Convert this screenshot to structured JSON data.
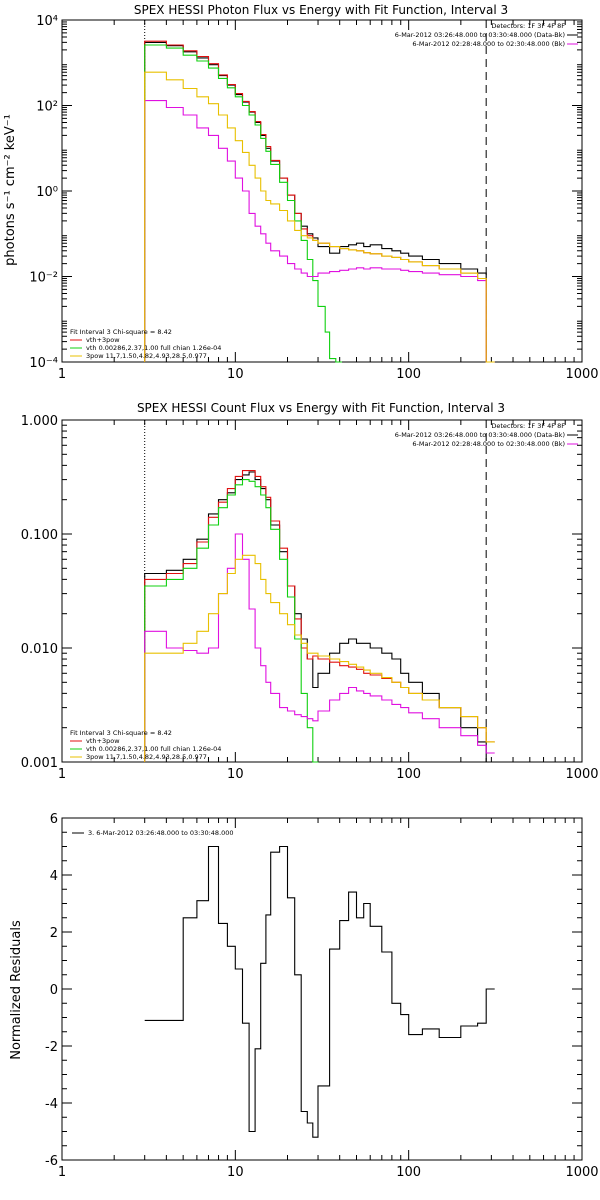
{
  "colors": {
    "black": "#000000",
    "red": "#e01010",
    "green": "#10d010",
    "magenta": "#e010e0",
    "yellow": "#e8c000"
  },
  "chart_data": [
    {
      "type": "line",
      "step": true,
      "title": "SPEX HESSI Photon Flux vs Energy with Fit Function, Interval 3",
      "ylabel": "photons s⁻¹ cm⁻² keV⁻¹",
      "xlabel": "",
      "xscale": "log",
      "yscale": "log",
      "xlim": [
        1,
        1000
      ],
      "ylim": [
        0.0001,
        10000
      ],
      "x_ticks": [
        1,
        10,
        100,
        1000
      ],
      "x_tick_labels": [
        "1",
        "10",
        "100",
        "1000"
      ],
      "y_ticks": [
        0.0001,
        0.01,
        1,
        100,
        10000
      ],
      "y_tick_labels": [
        "10⁻⁴",
        "10⁻²",
        "10⁰",
        "10²",
        "10⁴"
      ],
      "vlines": [
        {
          "x": 3,
          "style": "dotted"
        },
        {
          "x": 280,
          "style": "dashed"
        }
      ],
      "legend_tr": [
        "Detectors: 1F 3F 4F 8F",
        "6-Mar-2012 03:26:48.000 to 03:30:48.000 (Data-Bk)",
        "6-Mar-2012 02:28:48.000 to 02:30:48.000 (Bk)"
      ],
      "legend_bl": [
        "Fit Interval 3   Chi-square = 8.42",
        "vth+3pow",
        "vth 0.00286,2.37,1.00  full chian 1.26e-04",
        "3pow 11.7,1.50,4.82,4.93,28.5,0.977"
      ],
      "series": [
        {
          "color": "black",
          "x": [
            3,
            4,
            5,
            6,
            7,
            8,
            9,
            10,
            11,
            12,
            13,
            14,
            15,
            16,
            18,
            20,
            22,
            24,
            26,
            28,
            30,
            35,
            40,
            45,
            50,
            55,
            60,
            70,
            80,
            90,
            100,
            120,
            150,
            200,
            250,
            280
          ],
          "y": [
            3000,
            2500,
            1800,
            1300,
            900,
            500,
            300,
            180,
            120,
            70,
            40,
            20,
            10,
            5,
            2,
            0.8,
            0.3,
            0.15,
            0.1,
            0.08,
            0.05,
            0.035,
            0.05,
            0.055,
            0.06,
            0.05,
            0.055,
            0.045,
            0.04,
            0.035,
            0.03,
            0.025,
            0.02,
            0.015,
            0.012,
            0.0001
          ]
        },
        {
          "color": "red",
          "x": [
            3,
            4,
            5,
            6,
            7,
            8,
            9,
            10,
            11,
            12,
            13,
            14,
            15,
            16,
            18,
            20,
            22,
            24,
            26,
            28,
            30,
            35,
            40,
            45,
            50,
            55,
            60,
            70,
            80,
            90,
            100,
            120,
            150,
            200,
            250,
            280
          ],
          "y": [
            3200,
            2600,
            1900,
            1400,
            950,
            520,
            310,
            190,
            125,
            72,
            42,
            21,
            11,
            5.2,
            2,
            0.8,
            0.3,
            0.13,
            0.09,
            0.07,
            0.06,
            0.05,
            0.045,
            0.042,
            0.04,
            0.036,
            0.034,
            0.03,
            0.028,
            0.025,
            0.022,
            0.018,
            0.015,
            0.012,
            0.009,
            0.0001
          ]
        },
        {
          "color": "green",
          "x": [
            3,
            4,
            5,
            6,
            7,
            8,
            9,
            10,
            11,
            12,
            13,
            14,
            15,
            16,
            18,
            20,
            22,
            24,
            26,
            28,
            30,
            33,
            35,
            38
          ],
          "y": [
            2600,
            2200,
            1500,
            1100,
            750,
            430,
            260,
            160,
            100,
            60,
            35,
            17,
            8.5,
            4.2,
            1.6,
            0.6,
            0.2,
            0.07,
            0.025,
            0.008,
            0.002,
            0.0005,
            0.00012,
            0.0001
          ]
        },
        {
          "color": "magenta",
          "x": [
            3,
            4,
            5,
            6,
            7,
            8,
            9,
            10,
            11,
            12,
            13,
            14,
            15,
            16,
            18,
            20,
            22,
            24,
            26,
            28,
            30,
            35,
            40,
            45,
            50,
            55,
            60,
            70,
            80,
            90,
            100,
            120,
            150,
            200,
            250,
            280
          ],
          "y": [
            130,
            90,
            60,
            30,
            20,
            10,
            5,
            2,
            1,
            0.3,
            0.15,
            0.1,
            0.06,
            0.04,
            0.03,
            0.02,
            0.015,
            0.012,
            0.01,
            0.01,
            0.012,
            0.013,
            0.014,
            0.015,
            0.016,
            0.015,
            0.016,
            0.015,
            0.015,
            0.014,
            0.013,
            0.012,
            0.011,
            0.01,
            0.008,
            0.0001
          ]
        },
        {
          "color": "yellow",
          "x": [
            3,
            4,
            5,
            6,
            7,
            8,
            9,
            10,
            11,
            12,
            13,
            14,
            15,
            16,
            18,
            20,
            22,
            24,
            26,
            28,
            30,
            35,
            40,
            45,
            50,
            55,
            60,
            70,
            80,
            90,
            100,
            120,
            150,
            200,
            250,
            280
          ],
          "y": [
            600,
            400,
            250,
            160,
            110,
            60,
            30,
            15,
            8,
            4,
            2,
            1,
            0.6,
            0.5,
            0.35,
            0.2,
            0.12,
            0.09,
            0.08,
            0.07,
            0.06,
            0.05,
            0.045,
            0.042,
            0.04,
            0.036,
            0.034,
            0.03,
            0.028,
            0.025,
            0.022,
            0.018,
            0.015,
            0.012,
            0.009,
            0.0001
          ]
        }
      ]
    },
    {
      "type": "line",
      "step": true,
      "title": "SPEX HESSI Count Flux vs Energy with Fit Function, Interval 3",
      "ylabel": "",
      "xlabel": "",
      "xscale": "log",
      "yscale": "log",
      "xlim": [
        1,
        1000
      ],
      "ylim": [
        0.001,
        1
      ],
      "x_ticks": [
        1,
        10,
        100,
        1000
      ],
      "x_tick_labels": [
        "1",
        "10",
        "100",
        "1000"
      ],
      "y_ticks": [
        0.001,
        0.01,
        0.1,
        1
      ],
      "y_tick_labels": [
        "0.001",
        "0.010",
        "0.100",
        "1.000"
      ],
      "vlines": [
        {
          "x": 3,
          "style": "dotted"
        },
        {
          "x": 280,
          "style": "dashed"
        }
      ],
      "legend_tr": [
        "Detectors: 1F 3F 4F 8F",
        "6-Mar-2012 03:26:48.000 to 03:30:48.000 (Data-Bk)",
        "6-Mar-2012 02:28:48.000 to 02:30:48.000 (Bk)"
      ],
      "legend_bl": [
        "Fit Interval 3   Chi-square = 8.42",
        "vth+3pow",
        "vth 0.00286,2.37,1.00  full chian 1.26e-04",
        "3pow 11.7,1.50,4.82,4.93,28.5,0.977"
      ],
      "series": [
        {
          "color": "black",
          "x": [
            3,
            4,
            5,
            6,
            7,
            8,
            9,
            10,
            11,
            12,
            13,
            14,
            15,
            16,
            18,
            20,
            22,
            24,
            26,
            28,
            30,
            35,
            40,
            45,
            50,
            55,
            60,
            70,
            80,
            90,
            100,
            120,
            150,
            200,
            250,
            280
          ],
          "y": [
            0.045,
            0.048,
            0.06,
            0.09,
            0.15,
            0.2,
            0.23,
            0.3,
            0.33,
            0.35,
            0.3,
            0.25,
            0.2,
            0.12,
            0.07,
            0.035,
            0.02,
            0.012,
            0.008,
            0.0045,
            0.006,
            0.009,
            0.011,
            0.012,
            0.011,
            0.011,
            0.01,
            0.009,
            0.008,
            0.006,
            0.005,
            0.004,
            0.003,
            0.002,
            0.0015,
            0.001
          ]
        },
        {
          "color": "red",
          "x": [
            3,
            4,
            5,
            6,
            7,
            8,
            9,
            10,
            11,
            12,
            13,
            14,
            15,
            16,
            18,
            20,
            22,
            24,
            26,
            28,
            30,
            35,
            40,
            45,
            50,
            55,
            60,
            70,
            80,
            90,
            100,
            120,
            150,
            200,
            250,
            280
          ],
          "y": [
            0.04,
            0.045,
            0.055,
            0.085,
            0.14,
            0.19,
            0.25,
            0.32,
            0.36,
            0.36,
            0.32,
            0.26,
            0.21,
            0.13,
            0.075,
            0.035,
            0.018,
            0.01,
            0.008,
            0.0085,
            0.008,
            0.0075,
            0.007,
            0.0068,
            0.0065,
            0.006,
            0.0058,
            0.0054,
            0.005,
            0.0045,
            0.004,
            0.0035,
            0.003,
            0.0025,
            0.002,
            0.0015
          ]
        },
        {
          "color": "green",
          "x": [
            3,
            4,
            5,
            6,
            7,
            8,
            9,
            10,
            11,
            12,
            13,
            14,
            15,
            16,
            18,
            20,
            22,
            24,
            26,
            28
          ],
          "y": [
            0.035,
            0.04,
            0.05,
            0.075,
            0.12,
            0.17,
            0.22,
            0.27,
            0.3,
            0.29,
            0.26,
            0.22,
            0.17,
            0.11,
            0.06,
            0.028,
            0.012,
            0.004,
            0.002,
            0.001
          ]
        },
        {
          "color": "magenta",
          "x": [
            3,
            4,
            5,
            6,
            7,
            8,
            9,
            10,
            11,
            12,
            13,
            14,
            15,
            16,
            18,
            20,
            22,
            24,
            26,
            28,
            30,
            35,
            40,
            45,
            50,
            55,
            60,
            70,
            80,
            90,
            100,
            120,
            150,
            200,
            250,
            280
          ],
          "y": [
            0.014,
            0.01,
            0.0095,
            0.009,
            0.01,
            0.03,
            0.05,
            0.1,
            0.06,
            0.022,
            0.01,
            0.007,
            0.005,
            0.004,
            0.003,
            0.0028,
            0.0026,
            0.0025,
            0.0024,
            0.0023,
            0.0028,
            0.0035,
            0.004,
            0.0045,
            0.0042,
            0.004,
            0.0038,
            0.0035,
            0.0032,
            0.003,
            0.0027,
            0.0024,
            0.002,
            0.0017,
            0.0014,
            0.0012
          ]
        },
        {
          "color": "yellow",
          "x": [
            3,
            4,
            5,
            6,
            7,
            8,
            9,
            10,
            11,
            12,
            13,
            14,
            15,
            16,
            18,
            20,
            22,
            24,
            26,
            28,
            30,
            35,
            40,
            45,
            50,
            55,
            60,
            70,
            80,
            90,
            100,
            120,
            150,
            200,
            250,
            280
          ],
          "y": [
            0.009,
            0.009,
            0.011,
            0.014,
            0.02,
            0.03,
            0.045,
            0.06,
            0.065,
            0.065,
            0.055,
            0.04,
            0.03,
            0.025,
            0.02,
            0.016,
            0.013,
            0.011,
            0.009,
            0.009,
            0.0085,
            0.008,
            0.0076,
            0.0072,
            0.0068,
            0.0064,
            0.006,
            0.0055,
            0.005,
            0.0045,
            0.004,
            0.0035,
            0.003,
            0.0025,
            0.002,
            0.0015
          ]
        }
      ]
    },
    {
      "type": "line",
      "step": true,
      "title": "",
      "ylabel": "Normalized Residuals",
      "xlabel": "",
      "xscale": "log",
      "yscale": "linear",
      "xlim": [
        1,
        1000
      ],
      "ylim": [
        -6,
        6
      ],
      "x_ticks": [
        1,
        10,
        100,
        1000
      ],
      "x_tick_labels": [
        "1",
        "10",
        "100",
        "1000"
      ],
      "y_ticks": [
        -6,
        -4,
        -2,
        0,
        2,
        4,
        6
      ],
      "y_tick_labels": [
        "-6",
        "-4",
        "-2",
        "0",
        "2",
        "4",
        "6"
      ],
      "legend_tl": [
        "3.  6-Mar-2012 03:26:48.000 to 03:30:48.000"
      ],
      "series": [
        {
          "color": "black",
          "x": [
            3,
            4,
            5,
            6,
            7,
            8,
            9,
            10,
            11,
            12,
            13,
            14,
            15,
            16,
            18,
            20,
            22,
            24,
            26,
            28,
            30,
            35,
            40,
            45,
            50,
            55,
            60,
            70,
            80,
            90,
            100,
            120,
            150,
            200,
            250,
            280
          ],
          "y": [
            -1.1,
            -1.1,
            2.5,
            3.1,
            5.0,
            2.3,
            1.5,
            0.7,
            -1.2,
            -5.0,
            -2.1,
            0.9,
            2.6,
            4.8,
            5.0,
            3.2,
            0.5,
            -4.3,
            -4.7,
            -5.2,
            -3.4,
            1.4,
            2.4,
            3.4,
            2.5,
            3.0,
            2.2,
            1.3,
            -0.5,
            -0.9,
            -1.6,
            -1.4,
            -1.7,
            -1.3,
            -1.2,
            0.0
          ]
        }
      ]
    }
  ]
}
